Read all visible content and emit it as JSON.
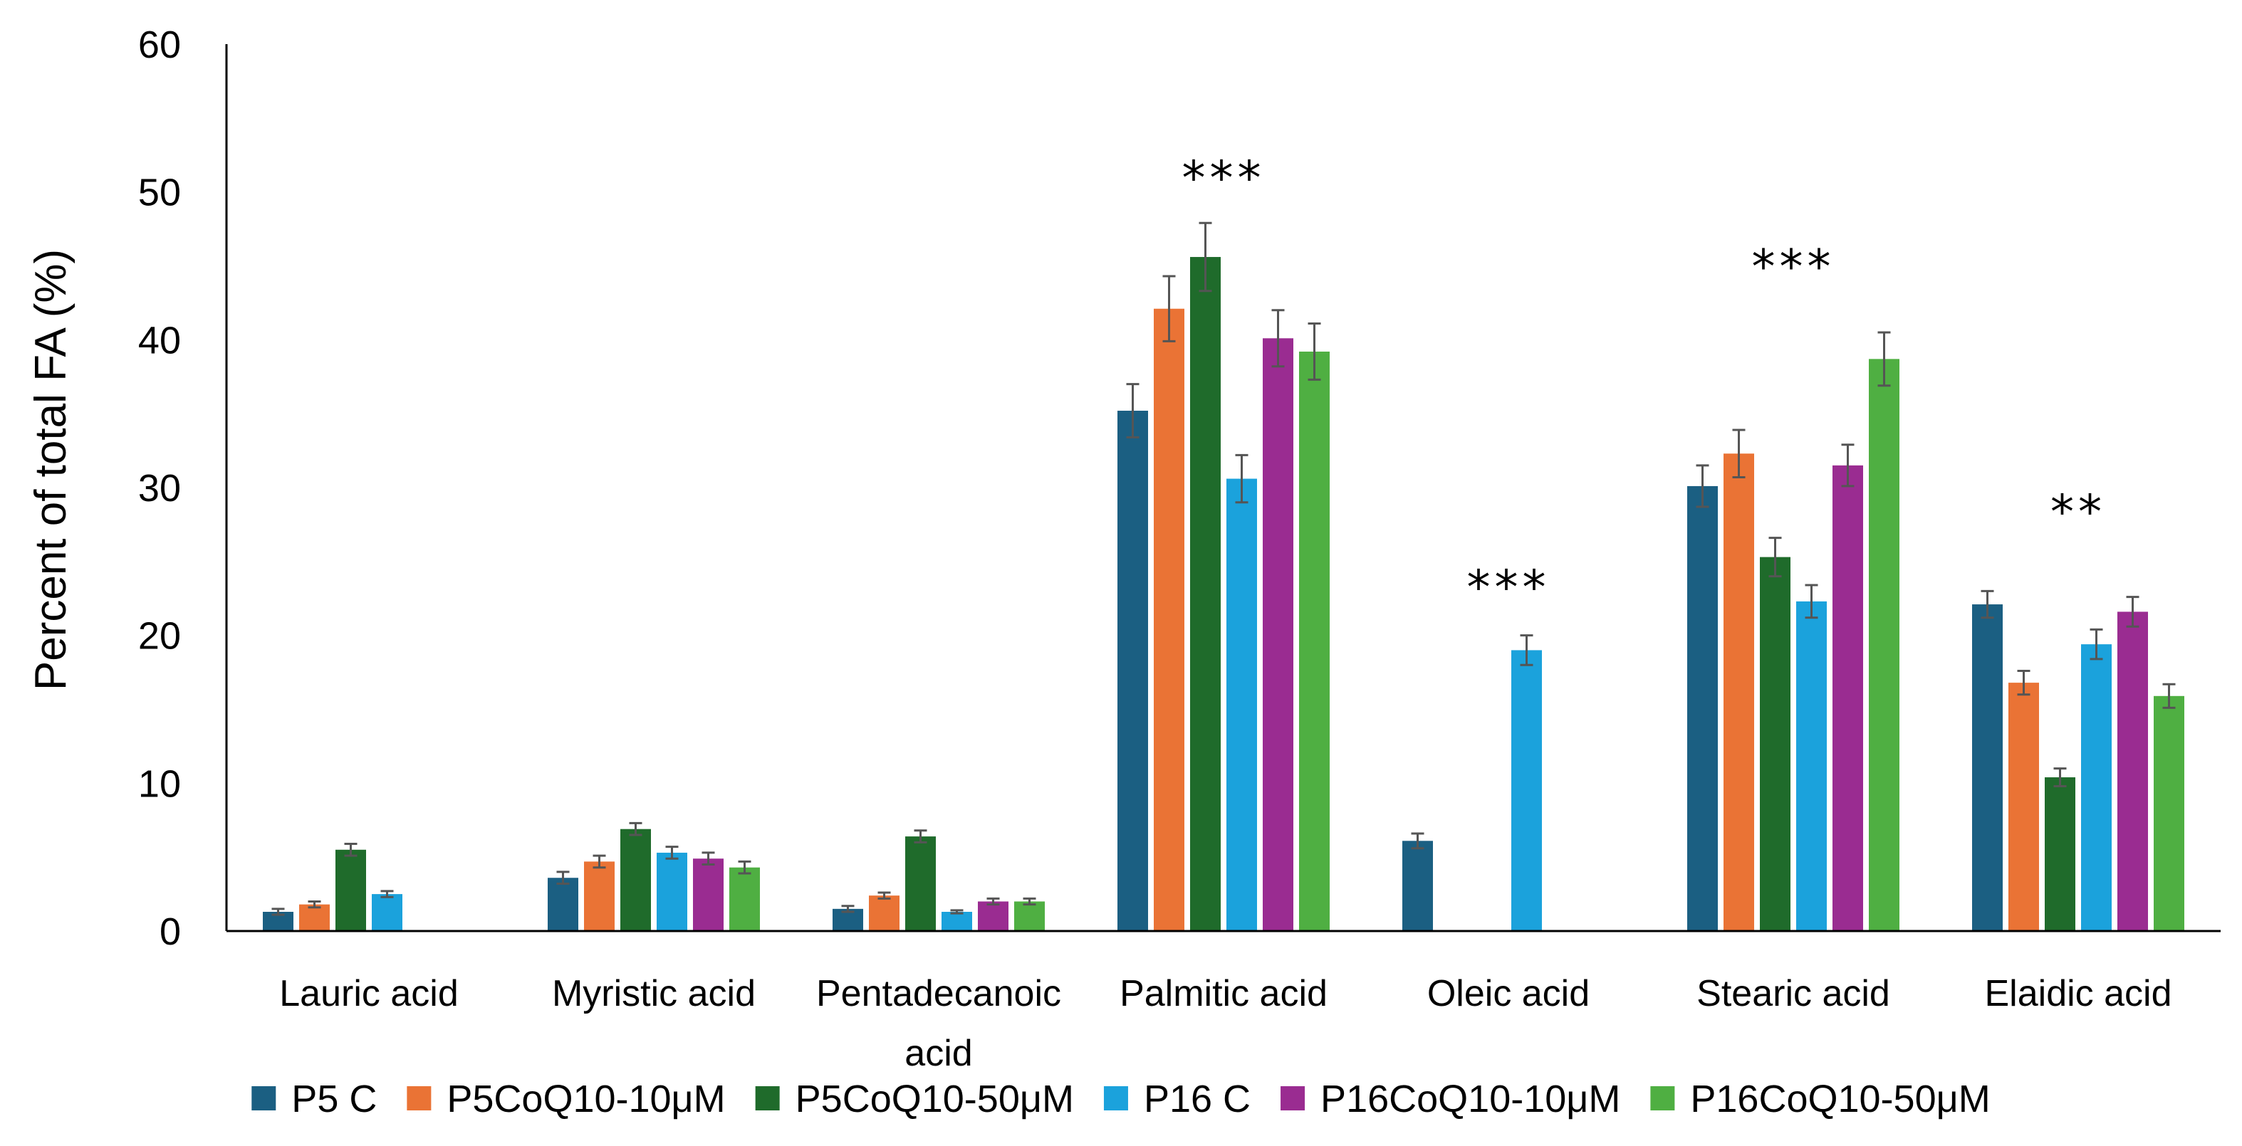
{
  "chart_data": {
    "type": "bar",
    "title": "",
    "xlabel": "",
    "ylabel": "Percent of total FA (%)",
    "ylim": [
      0,
      60
    ],
    "yticks": [
      "0",
      "10",
      "20",
      "30",
      "40",
      "50",
      "60"
    ],
    "grid": false,
    "legend_position": "bottom",
    "categories": [
      "Lauric acid",
      "Myristic acid",
      "Pentadecanoic acid",
      "Palmitic acid",
      "Oleic acid",
      "Stearic acid",
      "Elaidic acid"
    ],
    "category_lines": [
      [
        "Lauric acid"
      ],
      [
        "Myristic acid"
      ],
      [
        "Pentadecanoic",
        "acid"
      ],
      [
        "Palmitic acid"
      ],
      [
        "Oleic acid"
      ],
      [
        "Stearic acid"
      ],
      [
        "Elaidic acid"
      ]
    ],
    "series": [
      {
        "name": "P5 C",
        "color": "#1b5f82",
        "values": [
          1.3,
          3.6,
          1.5,
          35.2,
          6.1,
          30.1,
          22.1
        ],
        "errors": [
          0.2,
          0.4,
          0.2,
          1.8,
          0.5,
          1.4,
          0.9
        ]
      },
      {
        "name": "P5CoQ10-10μM",
        "color": "#ea7335",
        "values": [
          1.8,
          4.7,
          2.4,
          42.1,
          null,
          32.3,
          16.8
        ],
        "errors": [
          0.2,
          0.4,
          0.2,
          2.2,
          null,
          1.6,
          0.8
        ]
      },
      {
        "name": "P5CoQ10-50μM",
        "color": "#1f6b2b",
        "values": [
          5.5,
          6.9,
          6.4,
          45.6,
          null,
          25.3,
          10.4
        ],
        "errors": [
          0.4,
          0.4,
          0.4,
          2.3,
          null,
          1.3,
          0.6
        ]
      },
      {
        "name": "P16 C",
        "color": "#1ba2dc",
        "values": [
          2.5,
          5.3,
          1.3,
          30.6,
          19.0,
          22.3,
          19.4
        ],
        "errors": [
          0.2,
          0.4,
          0.1,
          1.6,
          1.0,
          1.1,
          1.0
        ]
      },
      {
        "name": "P16CoQ10-10μM",
        "color": "#9a2c91",
        "values": [
          null,
          4.9,
          2.0,
          40.1,
          null,
          31.5,
          21.6
        ],
        "errors": [
          null,
          0.4,
          0.2,
          1.9,
          null,
          1.4,
          1.0
        ]
      },
      {
        "name": "P16CoQ10-50μM",
        "color": "#4faf42",
        "values": [
          null,
          4.3,
          2.0,
          39.2,
          null,
          38.7,
          15.9
        ],
        "errors": [
          null,
          0.4,
          0.2,
          1.9,
          null,
          1.8,
          0.8
        ]
      }
    ],
    "annotations": [
      {
        "category": "Palmitic acid",
        "text": "***",
        "y": 51
      },
      {
        "category": "Oleic acid",
        "text": "***",
        "y": 23.3
      },
      {
        "category": "Stearic acid",
        "text": "***",
        "y": 45
      },
      {
        "category": "Elaidic acid",
        "text": "**",
        "y": 28.4
      }
    ]
  }
}
